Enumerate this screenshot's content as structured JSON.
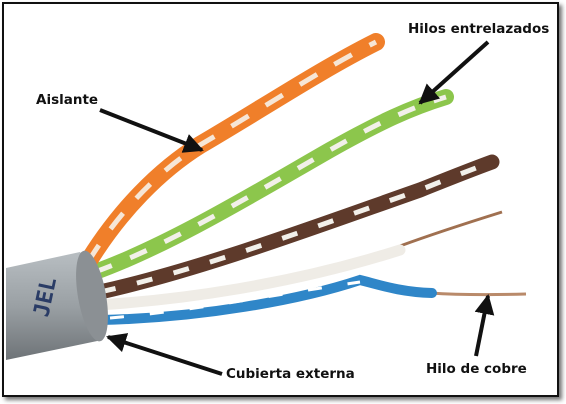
{
  "labels": {
    "insulation": "Aislante",
    "twisted_wires": "Hilos entrelazados",
    "outer_jacket": "Cubierta externa",
    "copper_wire": "Hilo de cobre"
  },
  "cable_print": "JEL",
  "colors": {
    "jacket": "#9aa0a4",
    "orange": "#f07f2a",
    "green": "#8cc64c",
    "brown": "#5e3a2b",
    "blue": "#2f86c8",
    "white_stripe": "#f2f0ea",
    "copper": "#b98a6a",
    "arrow": "#111111"
  }
}
